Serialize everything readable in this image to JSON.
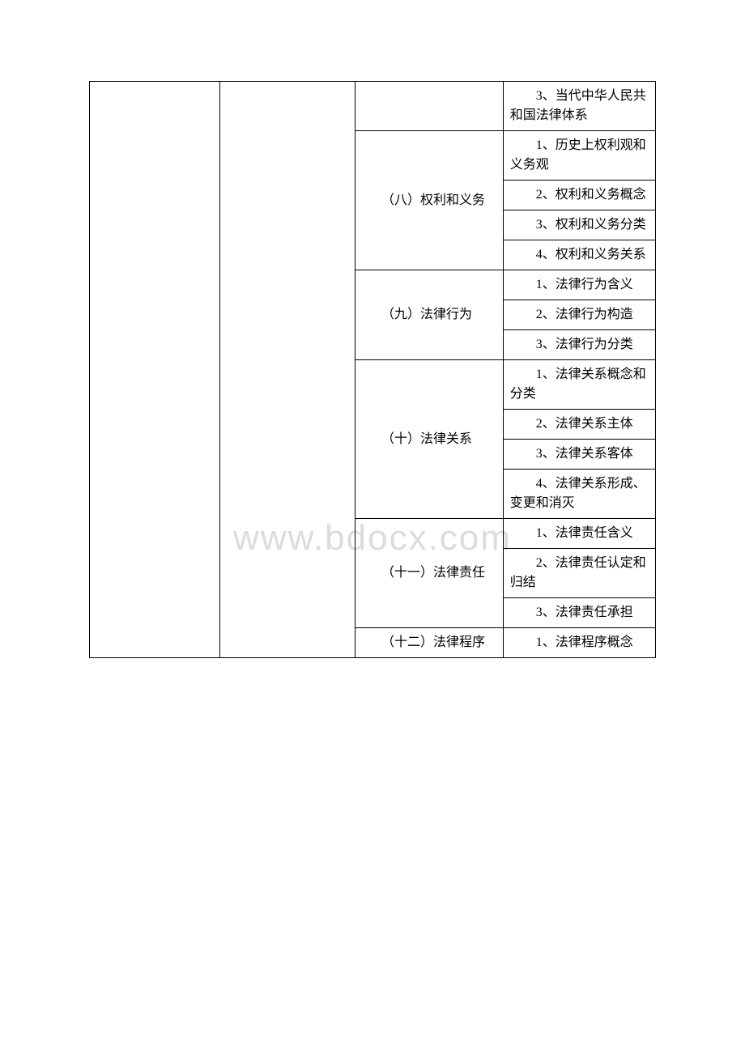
{
  "watermark": "www.bdocx.com",
  "table": {
    "col1_width": 150,
    "col2_width": 155,
    "col3_width": 170,
    "col4_width": 175,
    "border_color": "#000000",
    "font_size": 16,
    "text_color": "#000000",
    "watermark_color": "#dcdcdc",
    "background": "#ffffff",
    "rows": [
      {
        "col3": "",
        "col4": "　　3、当代中华人民共和国法律体系",
        "col3_rowspan": 1
      },
      {
        "col3": "　　（八）权利和义务",
        "col3_rowspan": 4,
        "col4": "　　1、历史上权利观和义务观"
      },
      {
        "col4": "　　2、权利和义务概念"
      },
      {
        "col4": "　　3、权利和义务分类"
      },
      {
        "col4": "　　4、权利和义务关系"
      },
      {
        "col3": "　　（九）法律行为",
        "col3_rowspan": 3,
        "col4": "　　1、法律行为含义"
      },
      {
        "col4": "　　2、法律行为构造"
      },
      {
        "col4": "　　3、法律行为分类"
      },
      {
        "col3": "　　（十）法律关系",
        "col3_rowspan": 4,
        "col4": "　　1、法律关系概念和分类"
      },
      {
        "col4": "　　2、法律关系主体"
      },
      {
        "col4": "　　3、法律关系客体"
      },
      {
        "col4": "　　4、法律关系形成、变更和消灭"
      },
      {
        "col3": "　　（十一）法律责任",
        "col3_rowspan": 3,
        "col4": "　　1、法律责任含义"
      },
      {
        "col4": "　　2、法律责任认定和归结"
      },
      {
        "col4": "　　3、法律责任承担"
      },
      {
        "col3": "　　（十二）法律程序",
        "col3_rowspan": 1,
        "col4": "　　1、法律程序概念"
      }
    ]
  }
}
